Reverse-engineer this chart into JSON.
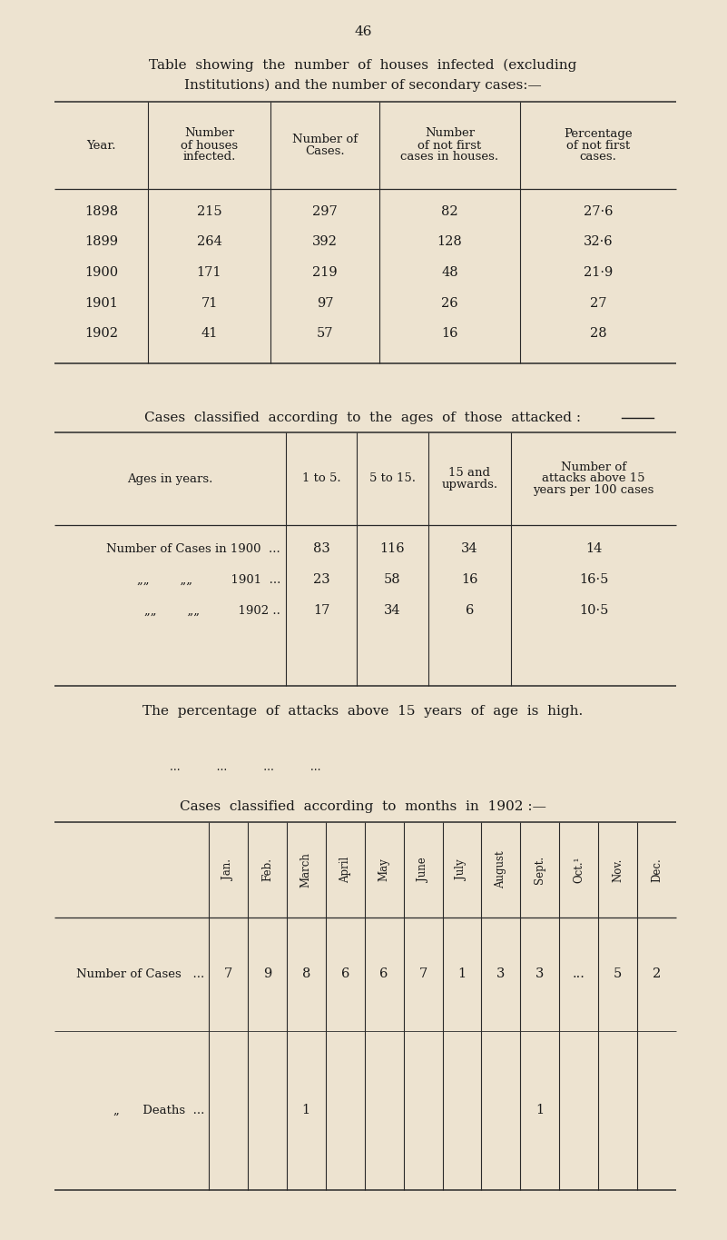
{
  "bg_color": "#ede3d0",
  "text_color": "#1a1a1a",
  "page_number": "46",
  "title_line1": "Table  showing  the  number  of  houses  infected  (excluding",
  "title_line2": "Institutions) and the number of secondary cases:—",
  "table1_headers": [
    "Year.",
    "Number\nof houses\ninfected.",
    "Number of\nCases.",
    "Number\nof not first\ncases in houses.",
    "Percentage\nof not first\ncases."
  ],
  "table1_data": [
    [
      "1898",
      "215",
      "297",
      "82",
      "27·6"
    ],
    [
      "1899",
      "264",
      "392",
      "128",
      "32·6"
    ],
    [
      "1900",
      "171",
      "219",
      "48",
      "21·9"
    ],
    [
      "1901",
      "71",
      "97",
      "26",
      "27"
    ],
    [
      "1902",
      "41",
      "57",
      "16",
      "28"
    ]
  ],
  "section2_title": "Cases  classified  according  to  the  ages  of  those  attacked :",
  "table2_col0_header": "Ages in years.",
  "table2_col1_header": "1 to 5.",
  "table2_col2_header": "5 to 15.",
  "table2_col3_header": "15 and\nupwards.",
  "table2_col4_header": "Number of\nattacks above 15\nyears per 100 cases",
  "table2_row0_label": "Number of Cases in 1900  ...",
  "table2_row1_label": "„„        „„          1901  ...",
  "table2_row2_label": "„„        „„          1902 ..",
  "table2_data": [
    [
      "83",
      "116",
      "34",
      "14"
    ],
    [
      "23",
      "58",
      "16",
      "16·5"
    ],
    [
      "17",
      "34",
      "6",
      "10·5"
    ]
  ],
  "section2_note": "The  percentage  of  attacks  above  15  years  of  age  is  high.",
  "ellipsis_line": "...          ...          ...          ...",
  "section3_title": "Cases  classified  according  to  months  in  1902 :—",
  "table3_months": [
    "Jan.",
    "Feb.",
    "March",
    "April",
    "May",
    "June",
    "July",
    "August",
    "Sept.",
    "Oct.¹",
    "Nov.",
    "Dec."
  ],
  "table3_cases": [
    "7",
    "9",
    "8",
    "6",
    "6",
    "7",
    "1",
    "3",
    "3",
    "...",
    "5",
    "2"
  ],
  "table3_deaths": [
    "",
    "",
    "1",
    "",
    "",
    "",
    "",
    "",
    "1",
    "",
    "",
    ""
  ],
  "table3_label_cases": "Number of Cases   ...",
  "table3_label_deaths": "„      Deaths  ..."
}
